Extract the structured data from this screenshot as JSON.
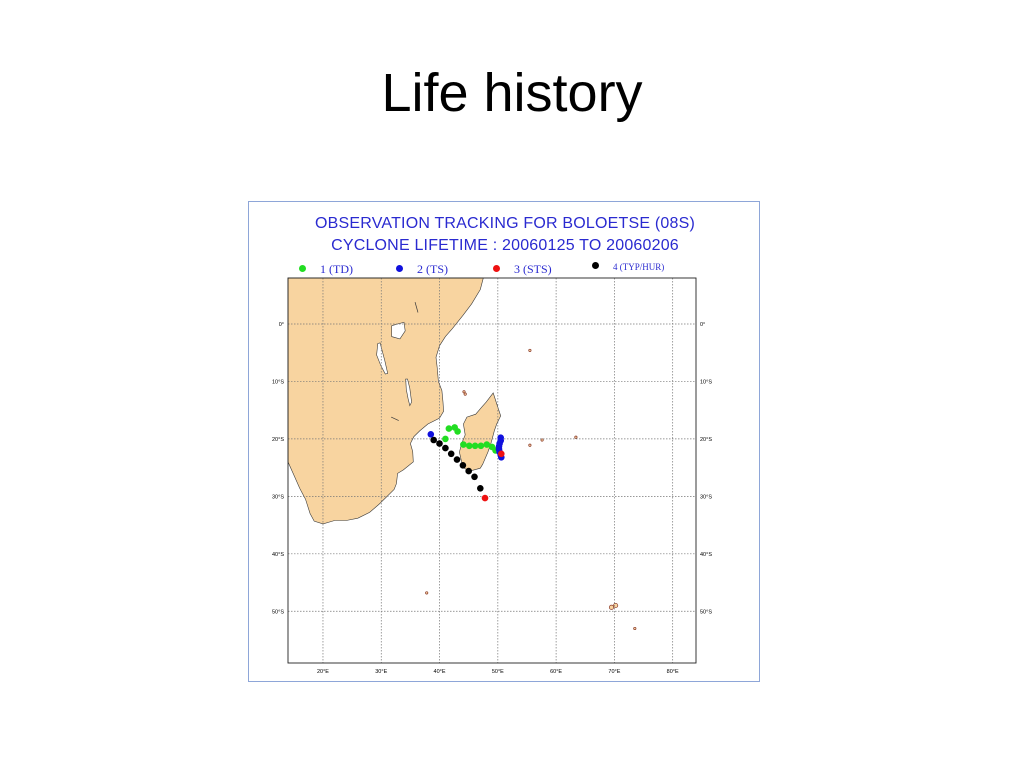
{
  "slide": {
    "title": "Life history"
  },
  "figure": {
    "title_line1": "OBSERVATION TRACKING FOR BOLOETSE (08S)",
    "title_line2": "CYCLONE LIFETIME : 20060125 TO 20060206",
    "legend": [
      {
        "label": "1 (TD)",
        "color": "#22dd22"
      },
      {
        "label": "2 (TS)",
        "color": "#1010dd"
      },
      {
        "label": "3 (STS)",
        "color": "#ee1111"
      },
      {
        "label": "4 (TYP/HUR)",
        "color": "#000000"
      }
    ]
  },
  "chart_data": {
    "type": "scatter",
    "title": "OBSERVATION TRACKING FOR BOLOETSE (08S)",
    "subtitle": "CYCLONE LIFETIME : 20060125 TO 20060206",
    "xlim": [
      14,
      84
    ],
    "ylim": [
      -59,
      8
    ],
    "x_ticks": [
      20,
      30,
      40,
      50,
      60,
      70,
      80
    ],
    "x_tick_labels": [
      "20°E",
      "30°E",
      "40°E",
      "50°E",
      "60°E",
      "70°E",
      "80°E"
    ],
    "y_ticks": [
      0,
      -10,
      -20,
      -30,
      -40,
      -50
    ],
    "y_tick_labels": [
      "0°",
      "10°S",
      "20°S",
      "30°S",
      "40°S",
      "50°S"
    ],
    "grid": true,
    "legend_position": "top",
    "land_color": "#f8d4a0",
    "coast_color": "#3a3a3a",
    "series": [
      {
        "name": "1 (TD)",
        "color": "#22dd22",
        "points": [
          [
            41.0,
            -20.0
          ],
          [
            41.6,
            -18.2
          ],
          [
            42.6,
            -18.0
          ],
          [
            43.1,
            -18.7
          ],
          [
            44.1,
            -21.0
          ],
          [
            45.1,
            -21.2
          ],
          [
            46.1,
            -21.2
          ],
          [
            47.1,
            -21.2
          ],
          [
            48.1,
            -21.0
          ],
          [
            49.0,
            -21.4
          ],
          [
            49.6,
            -22.0
          ]
        ]
      },
      {
        "name": "2 (TS)",
        "color": "#1010dd",
        "points": [
          [
            38.5,
            -19.2
          ],
          [
            50.5,
            -19.8
          ],
          [
            50.5,
            -20.3
          ],
          [
            50.3,
            -20.8
          ],
          [
            50.2,
            -21.3
          ],
          [
            50.2,
            -21.8
          ],
          [
            50.3,
            -22.3
          ],
          [
            50.5,
            -22.8
          ],
          [
            50.6,
            -23.2
          ]
        ]
      },
      {
        "name": "3 (STS)",
        "color": "#ee1111",
        "points": [
          [
            50.6,
            -22.6
          ],
          [
            47.8,
            -30.3
          ]
        ]
      },
      {
        "name": "4 (TYP/HUR)",
        "color": "#000000",
        "points": [
          [
            39.0,
            -20.2
          ],
          [
            40.0,
            -20.8
          ],
          [
            41.0,
            -21.6
          ],
          [
            42.0,
            -22.6
          ],
          [
            43.0,
            -23.6
          ],
          [
            44.0,
            -24.6
          ],
          [
            45.0,
            -25.6
          ],
          [
            46.0,
            -26.6
          ],
          [
            47.0,
            -28.6
          ]
        ]
      }
    ]
  }
}
